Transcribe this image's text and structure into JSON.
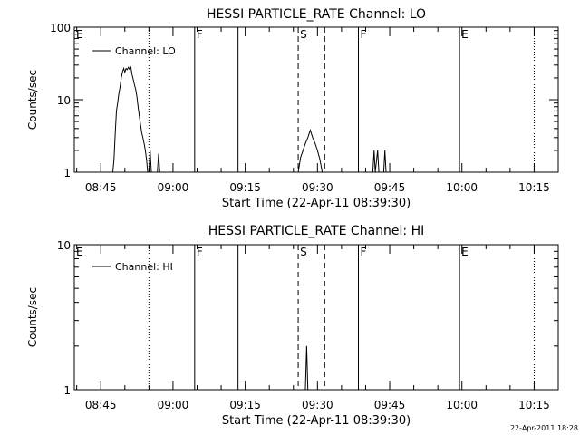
{
  "chart_data": [
    {
      "type": "line",
      "title": "HESSI PARTICLE_RATE Channel: LO",
      "xlabel": "Start Time (22-Apr-11 08:39:30)",
      "ylabel": "Counts/sec",
      "yscale": "log",
      "ylim": [
        1,
        100
      ],
      "xlim": [
        "08:39:30",
        "10:20:00"
      ],
      "x_ticks": [
        "08:45",
        "09:00",
        "09:15",
        "09:30",
        "09:45",
        "10:00",
        "10:15"
      ],
      "y_ticks": [
        "1",
        "10",
        "100"
      ],
      "grid": false,
      "legend": {
        "position": "top-left",
        "entries": [
          "Channel: LO"
        ]
      },
      "event_markers": [
        {
          "label": "E",
          "time": "08:39:30",
          "style": "solid"
        },
        {
          "label": "",
          "time": "08:55:00",
          "style": "dotted"
        },
        {
          "label": "F",
          "time": "09:04:30",
          "style": "solid"
        },
        {
          "label": "",
          "time": "09:13:30",
          "style": "solid"
        },
        {
          "label": "S",
          "time": "09:26:00",
          "style": "dashed"
        },
        {
          "label": "",
          "time": "09:31:30",
          "style": "dashed"
        },
        {
          "label": "F",
          "time": "09:38:30",
          "style": "solid"
        },
        {
          "label": "E",
          "time": "09:59:30",
          "style": "solid"
        },
        {
          "label": "",
          "time": "10:15:00",
          "style": "dotted"
        }
      ],
      "series": [
        {
          "name": "Channel: LO",
          "segments": [
            [
              [
                "08:47:30",
                1
              ],
              [
                "08:47:45",
                1.5
              ],
              [
                "08:48:00",
                3.5
              ],
              [
                "08:48:15",
                7
              ],
              [
                "08:48:30",
                9
              ],
              [
                "08:48:45",
                12
              ],
              [
                "08:49:00",
                15
              ],
              [
                "08:49:15",
                20
              ],
              [
                "08:49:30",
                24
              ],
              [
                "08:49:45",
                27
              ],
              [
                "08:50:00",
                24
              ],
              [
                "08:50:15",
                27
              ],
              [
                "08:50:30",
                26
              ],
              [
                "08:50:45",
                28
              ],
              [
                "08:51:00",
                26
              ],
              [
                "08:51:15",
                28
              ],
              [
                "08:51:30",
                22
              ],
              [
                "08:51:45",
                19
              ],
              [
                "08:52:00",
                16
              ],
              [
                "08:52:15",
                14
              ],
              [
                "08:52:30",
                11
              ],
              [
                "08:52:45",
                8
              ],
              [
                "08:53:00",
                6
              ],
              [
                "08:53:15",
                4.5
              ],
              [
                "08:53:30",
                3.5
              ],
              [
                "08:53:45",
                3
              ],
              [
                "08:54:00",
                2.5
              ],
              [
                "08:54:15",
                2
              ],
              [
                "08:54:30",
                1.5
              ],
              [
                "08:54:45",
                1
              ]
            ],
            [
              [
                "08:55:00",
                1
              ],
              [
                "08:55:15",
                2
              ],
              [
                "08:55:30",
                1
              ]
            ],
            [
              [
                "08:56:45",
                1
              ],
              [
                "08:57:00",
                1.8
              ],
              [
                "08:57:15",
                1
              ]
            ],
            [
              [
                "09:26:00",
                1
              ],
              [
                "09:26:30",
                1.6
              ],
              [
                "09:27:00",
                2
              ],
              [
                "09:27:30",
                2.5
              ],
              [
                "09:28:00",
                3
              ],
              [
                "09:28:30",
                3.8
              ],
              [
                "09:29:00",
                3
              ],
              [
                "09:29:30",
                2.5
              ],
              [
                "09:30:00",
                2
              ],
              [
                "09:30:30",
                1.5
              ],
              [
                "09:31:00",
                1
              ]
            ],
            [
              [
                "09:41:30",
                1
              ],
              [
                "09:41:45",
                2
              ],
              [
                "09:42:00",
                1
              ],
              [
                "09:42:30",
                2
              ],
              [
                "09:42:45",
                1
              ]
            ],
            [
              [
                "09:43:45",
                1
              ],
              [
                "09:44:00",
                2
              ],
              [
                "09:44:15",
                1
              ]
            ]
          ]
        }
      ]
    },
    {
      "type": "line",
      "title": "HESSI PARTICLE_RATE Channel: HI",
      "xlabel": "Start Time (22-Apr-11 08:39:30)",
      "ylabel": "Counts/sec",
      "yscale": "log",
      "ylim": [
        1,
        10
      ],
      "xlim": [
        "08:39:30",
        "10:20:00"
      ],
      "x_ticks": [
        "08:45",
        "09:00",
        "09:15",
        "09:30",
        "09:45",
        "10:00",
        "10:15"
      ],
      "y_ticks": [
        "1",
        "10"
      ],
      "grid": false,
      "legend": {
        "position": "top-left",
        "entries": [
          "Channel: HI"
        ]
      },
      "event_markers": [
        {
          "label": "E",
          "time": "08:39:30",
          "style": "solid"
        },
        {
          "label": "",
          "time": "08:55:00",
          "style": "dotted"
        },
        {
          "label": "F",
          "time": "09:04:30",
          "style": "solid"
        },
        {
          "label": "",
          "time": "09:13:30",
          "style": "solid"
        },
        {
          "label": "S",
          "time": "09:26:00",
          "style": "dashed"
        },
        {
          "label": "",
          "time": "09:31:30",
          "style": "dashed"
        },
        {
          "label": "F",
          "time": "09:38:30",
          "style": "solid"
        },
        {
          "label": "E",
          "time": "09:59:30",
          "style": "solid"
        },
        {
          "label": "",
          "time": "10:15:00",
          "style": "dotted"
        }
      ],
      "series": [
        {
          "name": "Channel: HI",
          "segments": [
            [
              [
                "09:27:30",
                1
              ],
              [
                "09:27:45",
                2
              ],
              [
                "09:28:00",
                1
              ]
            ]
          ]
        }
      ]
    }
  ],
  "footer": {
    "timestamp": "22-Apr-2011 18:28"
  }
}
